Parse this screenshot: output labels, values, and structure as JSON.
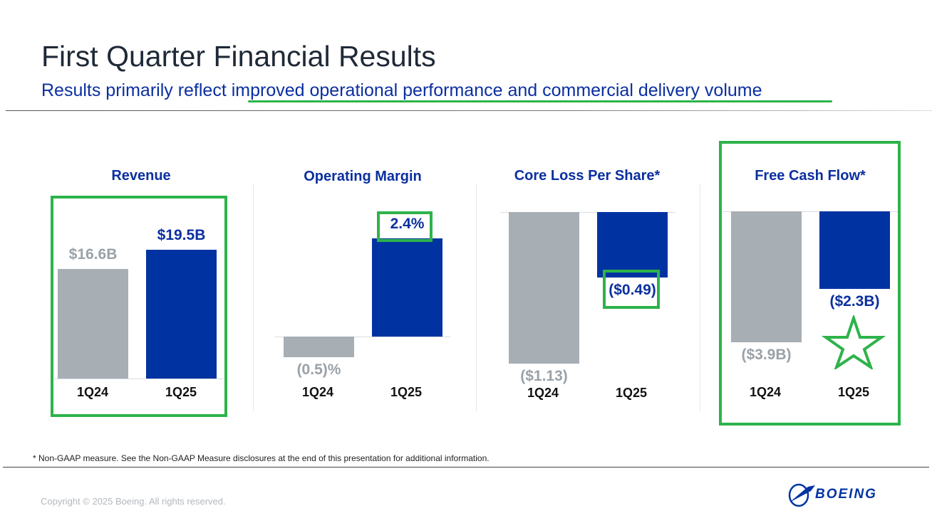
{
  "slide": {
    "title": "First Quarter Financial Results",
    "subtitle_prefix": "Results primarily reflect ",
    "subtitle_highlight": "improved operational performance and commercial delivery volume",
    "footnote": "* Non-GAAP measure. See the Non-GAAP Measure disclosures at the end of this presentation for additional information.",
    "copyright": "Copyright © 2025 Boeing. All rights reserved.",
    "logo_text": "BOEING"
  },
  "colors": {
    "prior": "#a7aeb4",
    "current": "#0033a1",
    "title_blue": "#0b2fa0",
    "highlight_green": "#2db34a"
  },
  "chart_data": [
    {
      "type": "bar",
      "title": "Revenue",
      "unit": "$B",
      "categories": [
        "1Q24",
        "1Q25"
      ],
      "values": [
        16.6,
        19.5
      ],
      "labels": [
        "$16.6B",
        "$19.5B"
      ]
    },
    {
      "type": "bar",
      "title": "Operating Margin",
      "unit": "%",
      "categories": [
        "1Q24",
        "1Q25"
      ],
      "values": [
        -0.5,
        2.4
      ],
      "labels": [
        "(0.5)%",
        "2.4%"
      ]
    },
    {
      "type": "bar",
      "title": "Core Loss Per Share*",
      "unit": "$",
      "categories": [
        "1Q24",
        "1Q25"
      ],
      "values": [
        -1.13,
        -0.49
      ],
      "labels": [
        "($1.13)",
        "($0.49)"
      ]
    },
    {
      "type": "bar",
      "title": "Free Cash Flow*",
      "unit": "$B",
      "categories": [
        "1Q24",
        "1Q25"
      ],
      "values": [
        -3.9,
        -2.3
      ],
      "labels": [
        "($3.9B)",
        "($2.3B)"
      ]
    }
  ]
}
